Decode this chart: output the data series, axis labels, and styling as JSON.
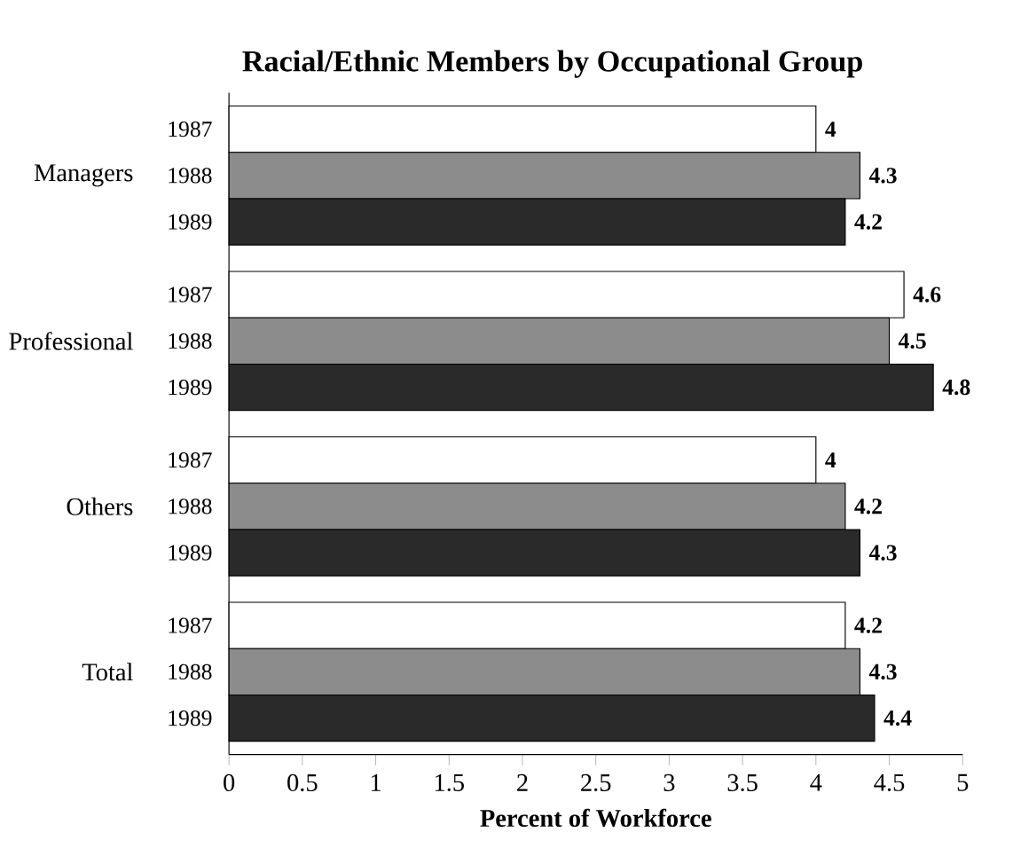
{
  "chart_data": {
    "type": "bar",
    "orientation": "horizontal",
    "title": "Racial/Ethnic Members by Occupational Group",
    "xlabel": "Percent of Workforce",
    "categories": [
      "Managers",
      "Professional",
      "Others",
      "Total"
    ],
    "series": [
      {
        "name": "1987",
        "color": "#ffffff",
        "values": [
          4,
          4.6,
          4,
          4.2
        ]
      },
      {
        "name": "1988",
        "color": "#8c8c8c",
        "values": [
          4.3,
          4.5,
          4.2,
          4.3
        ]
      },
      {
        "name": "1989",
        "color": "#2a2a2a",
        "values": [
          4.2,
          4.8,
          4.3,
          4.4
        ]
      }
    ],
    "xlim": [
      0,
      5
    ],
    "xticks": [
      0,
      0.5,
      1,
      1.5,
      2,
      2.5,
      3,
      3.5,
      4,
      4.5,
      5
    ],
    "data_labels": true,
    "legend": false,
    "grid": false
  }
}
